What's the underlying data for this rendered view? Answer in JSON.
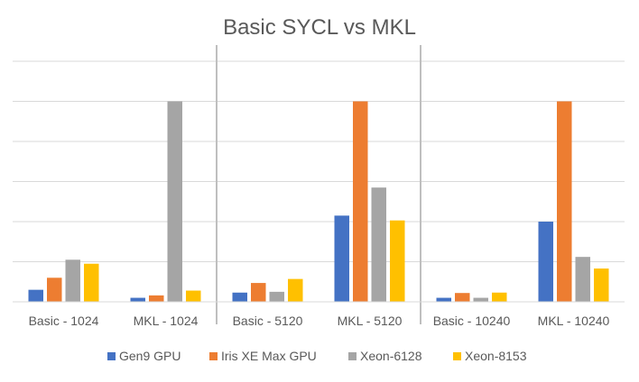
{
  "chart_data": {
    "type": "bar",
    "title": "Basic SYCL vs MKL",
    "xlabel": "",
    "ylabel": "",
    "ylim": [
      0,
      6
    ],
    "grid": true,
    "legend_position": "bottom",
    "categories": [
      "Basic - 1024",
      "MKL - 1024",
      "Basic - 5120",
      "MKL - 5120",
      "Basic - 10240",
      "MKL - 10240"
    ],
    "series": [
      {
        "name": "Gen9 GPU",
        "color": "#4472C4",
        "values": [
          0.3,
          0.1,
          0.23,
          2.15,
          0.1,
          2.0
        ]
      },
      {
        "name": "Iris XE Max GPU",
        "color": "#ED7D31",
        "values": [
          0.6,
          0.16,
          0.47,
          5.0,
          0.22,
          5.0
        ]
      },
      {
        "name": "Xeon-6128",
        "color": "#A5A5A5",
        "values": [
          1.05,
          5.0,
          0.25,
          2.85,
          0.1,
          1.12
        ]
      },
      {
        "name": "Xeon-8153",
        "color": "#FFC000",
        "values": [
          0.95,
          0.28,
          0.57,
          2.03,
          0.23,
          0.83
        ]
      }
    ],
    "separators_after_category": [
      1,
      3
    ],
    "bar_label_color": "#595959",
    "gridline_color": "#D9D9D9",
    "separator_color": "#BFBFBF"
  }
}
